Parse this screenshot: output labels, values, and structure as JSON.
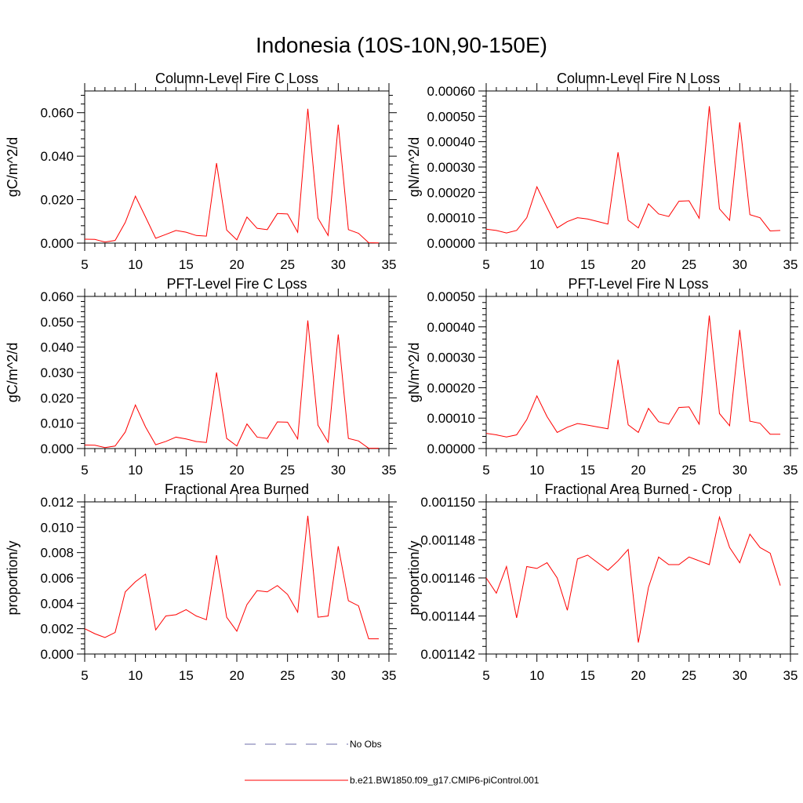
{
  "figure": {
    "title": "Indonesia (10S-10N,90-150E)"
  },
  "legend": {
    "placement": "bottom-center",
    "items": [
      {
        "label": "No Obs",
        "color": "#6e6ea8",
        "style": "dashed"
      },
      {
        "label": "b.e21.BW1850.f09_g17.CMIP6-piControl.001",
        "color": "#ff0000",
        "style": "solid"
      }
    ]
  },
  "chart_data": [
    {
      "type": "line",
      "title": "Column-Level Fire C Loss",
      "xlabel": "",
      "ylabel": "gC/m^2/d",
      "xlim": [
        5,
        35
      ],
      "ylim": [
        0,
        0.07
      ],
      "xticks": [
        5,
        10,
        15,
        20,
        25,
        30,
        35
      ],
      "xtick_labels": [
        "5",
        "10",
        "15",
        "20",
        "25",
        "30",
        "35"
      ],
      "yticks": [
        0,
        0.02,
        0.04,
        0.06
      ],
      "ytick_labels": [
        "0.000",
        "0.020",
        "0.040",
        "0.060"
      ],
      "series": [
        {
          "name": "b.e21.BW1850.f09_g17.CMIP6-piControl.001",
          "color": "#ff0000",
          "x": [
            5,
            6,
            7,
            8,
            9,
            10,
            11,
            12,
            13,
            14,
            15,
            16,
            17,
            18,
            19,
            20,
            21,
            22,
            23,
            24,
            25,
            26,
            27,
            28,
            29,
            30,
            31,
            32,
            33,
            34
          ],
          "y": [
            0.0018,
            0.0017,
            0.0005,
            0.0012,
            0.0095,
            0.0216,
            0.012,
            0.0022,
            0.004,
            0.0058,
            0.005,
            0.0035,
            0.0032,
            0.0368,
            0.006,
            0.0015,
            0.012,
            0.0068,
            0.0062,
            0.0136,
            0.0134,
            0.005,
            0.0618,
            0.0115,
            0.0035,
            0.0545,
            0.0062,
            0.0045,
            0.0002,
            0.0001
          ]
        }
      ]
    },
    {
      "type": "line",
      "title": "Column-Level Fire N Loss",
      "xlabel": "",
      "ylabel": "gN/m^2/d",
      "xlim": [
        5,
        35
      ],
      "ylim": [
        0,
        0.0006
      ],
      "xticks": [
        5,
        10,
        15,
        20,
        25,
        30,
        35
      ],
      "xtick_labels": [
        "5",
        "10",
        "15",
        "20",
        "25",
        "30",
        "35"
      ],
      "yticks": [
        0,
        0.0001,
        0.0002,
        0.0003,
        0.0004,
        0.0005,
        0.0006
      ],
      "ytick_labels": [
        "0.00000",
        "0.00010",
        "0.00020",
        "0.00030",
        "0.00040",
        "0.00050",
        "0.00060"
      ],
      "series": [
        {
          "name": "b.e21.BW1850.f09_g17.CMIP6-piControl.001",
          "color": "#ff0000",
          "x": [
            5,
            6,
            7,
            8,
            9,
            10,
            11,
            12,
            13,
            14,
            15,
            16,
            17,
            18,
            19,
            20,
            21,
            22,
            23,
            24,
            25,
            26,
            27,
            28,
            29,
            30,
            31,
            32,
            33,
            34
          ],
          "y": [
            5.5e-05,
            5e-05,
            4e-05,
            5e-05,
            0.0001,
            0.000222,
            0.00014,
            6e-05,
            8.5e-05,
            0.0001,
            9.5e-05,
            8.5e-05,
            7.5e-05,
            0.000358,
            9e-05,
            6e-05,
            0.000155,
            0.000115,
            0.000105,
            0.000165,
            0.000167,
            9.8e-05,
            0.00054,
            0.000135,
            9e-05,
            0.000476,
            0.000112,
            0.0001,
            4.8e-05,
            5e-05
          ]
        }
      ]
    },
    {
      "type": "line",
      "title": "PFT-Level Fire C Loss",
      "xlabel": "",
      "ylabel": "gC/m^2/d",
      "xlim": [
        5,
        35
      ],
      "ylim": [
        0,
        0.06
      ],
      "xticks": [
        5,
        10,
        15,
        20,
        25,
        30,
        35
      ],
      "xtick_labels": [
        "5",
        "10",
        "15",
        "20",
        "25",
        "30",
        "35"
      ],
      "yticks": [
        0,
        0.01,
        0.02,
        0.03,
        0.04,
        0.05,
        0.06
      ],
      "ytick_labels": [
        "0.000",
        "0.010",
        "0.020",
        "0.030",
        "0.040",
        "0.050",
        "0.060"
      ],
      "series": [
        {
          "name": "b.e21.BW1850.f09_g17.CMIP6-piControl.001",
          "color": "#ff0000",
          "x": [
            5,
            6,
            7,
            8,
            9,
            10,
            11,
            12,
            13,
            14,
            15,
            16,
            17,
            18,
            19,
            20,
            21,
            22,
            23,
            24,
            25,
            26,
            27,
            28,
            29,
            30,
            31,
            32,
            33,
            34
          ],
          "y": [
            0.0014,
            0.0013,
            0.0004,
            0.001,
            0.0065,
            0.0172,
            0.0085,
            0.0015,
            0.0028,
            0.0045,
            0.0038,
            0.0028,
            0.0024,
            0.03,
            0.004,
            0.001,
            0.0097,
            0.0045,
            0.004,
            0.0105,
            0.0104,
            0.0038,
            0.0505,
            0.0092,
            0.0025,
            0.045,
            0.004,
            0.003,
            0.0001,
            0.0001
          ]
        }
      ]
    },
    {
      "type": "line",
      "title": "PFT-Level Fire N Loss",
      "xlabel": "",
      "ylabel": "gN/m^2/d",
      "xlim": [
        5,
        35
      ],
      "ylim": [
        0,
        0.0005
      ],
      "xticks": [
        5,
        10,
        15,
        20,
        25,
        30,
        35
      ],
      "xtick_labels": [
        "5",
        "10",
        "15",
        "20",
        "25",
        "30",
        "35"
      ],
      "yticks": [
        0,
        0.0001,
        0.0002,
        0.0003,
        0.0004,
        0.0005
      ],
      "ytick_labels": [
        "0.00000",
        "0.00010",
        "0.00020",
        "0.00030",
        "0.00040",
        "0.00050"
      ],
      "series": [
        {
          "name": "b.e21.BW1850.f09_g17.CMIP6-piControl.001",
          "color": "#ff0000",
          "x": [
            5,
            6,
            7,
            8,
            9,
            10,
            11,
            12,
            13,
            14,
            15,
            16,
            17,
            18,
            19,
            20,
            21,
            22,
            23,
            24,
            25,
            26,
            27,
            28,
            29,
            30,
            31,
            32,
            33,
            34
          ],
          "y": [
            5e-05,
            4.5e-05,
            3.8e-05,
            4.5e-05,
            9.5e-05,
            0.000173,
            0.000105,
            5.3e-05,
            7e-05,
            8.2e-05,
            7.7e-05,
            7.1e-05,
            6.5e-05,
            0.000292,
            7.8e-05,
            5.3e-05,
            0.000132,
            8.8e-05,
            8e-05,
            0.000135,
            0.000137,
            8e-05,
            0.000437,
            0.000115,
            7.5e-05,
            0.00039,
            9e-05,
            8.3e-05,
            4.7e-05,
            4.7e-05
          ]
        }
      ]
    },
    {
      "type": "line",
      "title": "Fractional Area Burned",
      "xlabel": "",
      "ylabel": "proportion/y",
      "xlim": [
        5,
        35
      ],
      "ylim": [
        0,
        0.012
      ],
      "xticks": [
        5,
        10,
        15,
        20,
        25,
        30,
        35
      ],
      "xtick_labels": [
        "5",
        "10",
        "15",
        "20",
        "25",
        "30",
        "35"
      ],
      "yticks": [
        0,
        0.002,
        0.004,
        0.006,
        0.008,
        0.01,
        0.012
      ],
      "ytick_labels": [
        "0.000",
        "0.002",
        "0.004",
        "0.006",
        "0.008",
        "0.010",
        "0.012"
      ],
      "series": [
        {
          "name": "b.e21.BW1850.f09_g17.CMIP6-piControl.001",
          "color": "#ff0000",
          "x": [
            5,
            6,
            7,
            8,
            9,
            10,
            11,
            12,
            13,
            14,
            15,
            16,
            17,
            18,
            19,
            20,
            21,
            22,
            23,
            24,
            25,
            26,
            27,
            28,
            29,
            30,
            31,
            32,
            33,
            34
          ],
          "y": [
            0.002,
            0.0016,
            0.0013,
            0.0017,
            0.0049,
            0.0057,
            0.0063,
            0.0019,
            0.003,
            0.0031,
            0.0035,
            0.003,
            0.0027,
            0.0078,
            0.0029,
            0.0018,
            0.0039,
            0.005,
            0.0049,
            0.0054,
            0.0047,
            0.0033,
            0.0109,
            0.0029,
            0.003,
            0.0085,
            0.0042,
            0.0038,
            0.0012,
            0.0012
          ]
        }
      ]
    },
    {
      "type": "line",
      "title": "Fractional Area Burned - Crop",
      "xlabel": "",
      "ylabel": "proportion/y",
      "xlim": [
        5,
        35
      ],
      "ylim": [
        0.001142,
        0.00115
      ],
      "xticks": [
        5,
        10,
        15,
        20,
        25,
        30,
        35
      ],
      "xtick_labels": [
        "5",
        "10",
        "15",
        "20",
        "25",
        "30",
        "35"
      ],
      "yticks": [
        0.001142,
        0.001144,
        0.001146,
        0.001148,
        0.00115
      ],
      "ytick_labels": [
        "0.001142",
        "0.001144",
        "0.001146",
        "0.001148",
        "0.001150"
      ],
      "series": [
        {
          "name": "b.e21.BW1850.f09_g17.CMIP6-piControl.001",
          "color": "#ff0000",
          "x": [
            5,
            6,
            7,
            8,
            9,
            10,
            11,
            12,
            13,
            14,
            15,
            16,
            17,
            18,
            19,
            20,
            21,
            22,
            23,
            24,
            25,
            26,
            27,
            28,
            29,
            30,
            31,
            32,
            33,
            34
          ],
          "y": [
            0.001146,
            0.0011452,
            0.0011466,
            0.0011439,
            0.0011466,
            0.0011465,
            0.0011468,
            0.001146,
            0.0011443,
            0.001147,
            0.0011472,
            0.0011468,
            0.0011464,
            0.0011469,
            0.0011475,
            0.0011426,
            0.0011455,
            0.0011471,
            0.0011467,
            0.0011467,
            0.0011471,
            0.0011469,
            0.0011467,
            0.0011492,
            0.0011476,
            0.0011468,
            0.0011483,
            0.0011476,
            0.0011473,
            0.0011456
          ]
        }
      ]
    }
  ]
}
